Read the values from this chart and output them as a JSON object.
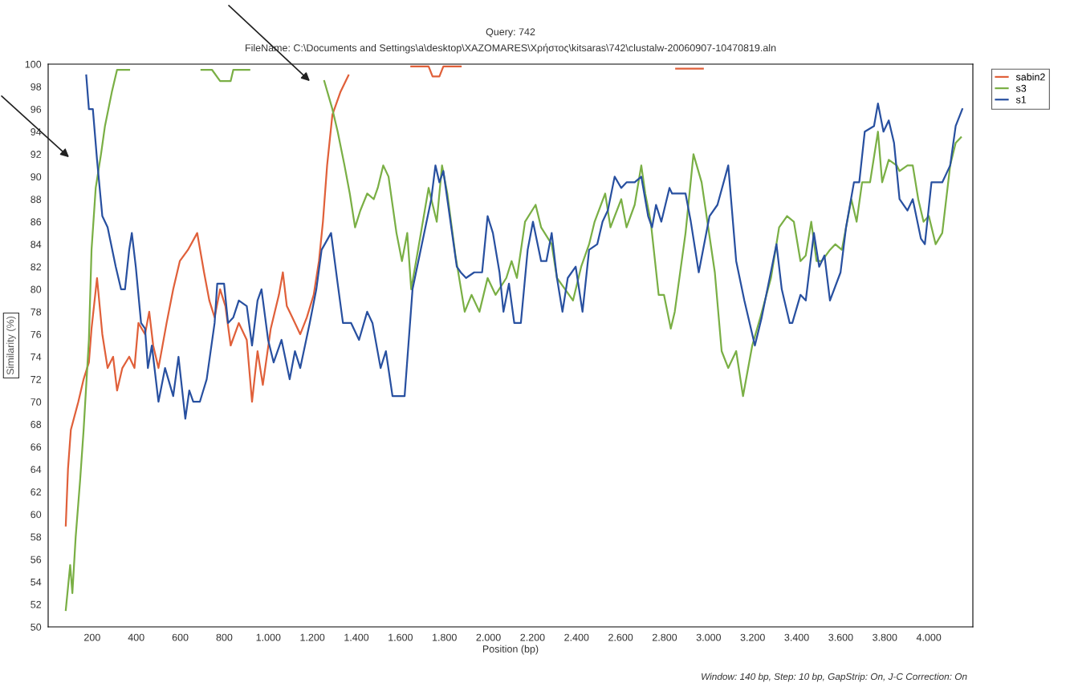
{
  "chart_data": {
    "type": "line",
    "title": "Query: 742",
    "subtitle": "FileName: C:\\Documents and Settings\\a\\desktop\\XAZOMARES\\Χρήστος\\kitsaras\\742\\clustalw-20060907-10470819.aln",
    "xlabel": "Position (bp)",
    "ylabel": "Similarity (%)",
    "annotations": [
      "Window: 140 bp, Step: 10 bp, GapStrip: On, J-C Correction: On"
    ],
    "xlim": [
      0,
      4200
    ],
    "ylim": [
      50,
      100
    ],
    "xticks": [
      200,
      400,
      600,
      800,
      {
        "value": 1000,
        "label": "1.000"
      },
      {
        "value": 1200,
        "label": "1.200"
      },
      {
        "value": 1400,
        "label": "1.400"
      },
      {
        "value": 1600,
        "label": "1.600"
      },
      {
        "value": 1800,
        "label": "1.800"
      },
      {
        "value": 2000,
        "label": "2.000"
      },
      {
        "value": 2200,
        "label": "2.200"
      },
      {
        "value": 2400,
        "label": "2.400"
      },
      {
        "value": 2600,
        "label": "2.600"
      },
      {
        "value": 2800,
        "label": "2.800"
      },
      {
        "value": 3000,
        "label": "3.000"
      },
      {
        "value": 3200,
        "label": "3.200"
      },
      {
        "value": 3400,
        "label": "3.400"
      },
      {
        "value": 3600,
        "label": "3.600"
      },
      {
        "value": 3800,
        "label": "3.800"
      },
      {
        "value": 4000,
        "label": "4.000"
      }
    ],
    "yticks": [
      50,
      52,
      54,
      56,
      58,
      60,
      62,
      64,
      66,
      68,
      70,
      72,
      74,
      76,
      78,
      80,
      82,
      84,
      86,
      88,
      90,
      92,
      94,
      96,
      98,
      100
    ],
    "grid": false,
    "legend": "top right",
    "marker": "none",
    "line_style": "solid",
    "series": [
      {
        "name": "sabin2",
        "color": "#e0603a",
        "x": [
          80,
          90,
          103,
          137,
          161,
          185,
          197,
          222,
          246,
          270,
          295,
          313,
          337,
          368,
          392,
          410,
          440,
          459,
          477,
          501,
          538,
          568,
          598,
          635,
          677,
          708,
          732,
          756,
          781,
          805,
          829,
          866,
          902,
          926,
          951,
          975,
          1011,
          1048,
          1066,
          1084,
          1109,
          1145,
          1175,
          1206,
          1230,
          1248,
          1267,
          1291,
          1327,
          1364,
          1500,
          1649,
          1728,
          1746,
          1777,
          1795,
          1874,
          2400,
          2852,
          2974
        ],
        "values": [
          59,
          64,
          67.5,
          70,
          72,
          73.5,
          76.5,
          81,
          76,
          73,
          74,
          71,
          73,
          74,
          73,
          77,
          76,
          78,
          75,
          73,
          77,
          80,
          82.5,
          83.5,
          85,
          81.5,
          79,
          77.5,
          80,
          78.5,
          75,
          77,
          75.5,
          70,
          74.5,
          71.5,
          76.5,
          79.5,
          81.5,
          78.5,
          77.5,
          76,
          77.5,
          79.5,
          82.5,
          86,
          91,
          95.5,
          97.5,
          99,
          null,
          99.8,
          99.8,
          98.9,
          98.9,
          99.8,
          99.8,
          null,
          99.6,
          99.6
        ]
      },
      {
        "name": "s3",
        "color": "#7aaf45",
        "x": [
          80,
          100,
          110,
          125,
          145,
          161,
          185,
          197,
          216,
          240,
          258,
          289,
          313,
          368,
          500,
          696,
          744,
          781,
          829,
          841,
          914,
          1100,
          1254,
          1291,
          1315,
          1346,
          1370,
          1394,
          1418,
          1449,
          1479,
          1497,
          1522,
          1546,
          1582,
          1607,
          1631,
          1649,
          1680,
          1728,
          1765,
          1789,
          1813,
          1850,
          1892,
          1923,
          1959,
          1996,
          2032,
          2081,
          2105,
          2129,
          2166,
          2214,
          2239,
          2287,
          2311,
          2348,
          2384,
          2421,
          2457,
          2482,
          2530,
          2554,
          2603,
          2627,
          2664,
          2694,
          2712,
          2737,
          2773,
          2797,
          2828,
          2846,
          2895,
          2931,
          2968,
          3028,
          3059,
          3089,
          3125,
          3156,
          3198,
          3235,
          3283,
          3320,
          3356,
          3387,
          3417,
          3441,
          3466,
          3490,
          3514,
          3551,
          3575,
          3605,
          3648,
          3672,
          3697,
          3733,
          3769,
          3788,
          3818,
          3854,
          3867,
          3903,
          3927,
          3952,
          3976,
          4000,
          4031,
          4061,
          4097,
          4122,
          4146
        ],
        "values": [
          51.5,
          55.5,
          53,
          58,
          63,
          67.5,
          75.5,
          83.5,
          89,
          92,
          94.5,
          97.5,
          99.5,
          99.5,
          null,
          99.5,
          99.5,
          98.5,
          98.5,
          99.5,
          99.5,
          null,
          98.5,
          96,
          94,
          91,
          88.5,
          85.5,
          87,
          88.5,
          88,
          89,
          91,
          90,
          85,
          82.5,
          85,
          80,
          83.5,
          89,
          86,
          91,
          88.5,
          83,
          78,
          79.5,
          78,
          81,
          79.5,
          81,
          82.5,
          81,
          86,
          87.5,
          85.5,
          84,
          81,
          80,
          79,
          82,
          84,
          86,
          88.5,
          85.5,
          88,
          85.5,
          87.5,
          91,
          88.5,
          86,
          79.5,
          79.5,
          76.5,
          78,
          85,
          92,
          89.5,
          81.5,
          74.5,
          73,
          74.5,
          70.5,
          75,
          77.5,
          81,
          85.5,
          86.5,
          86,
          82.5,
          83,
          86,
          82.5,
          82.5,
          83.5,
          84,
          83.5,
          88,
          86,
          89.5,
          89.5,
          94,
          89.5,
          91.5,
          91,
          90.5,
          91,
          91,
          88,
          86,
          86.5,
          84,
          85,
          91,
          93,
          93.5
        ]
      },
      {
        "name": "s1",
        "color": "#2850a0",
        "x": [
          173,
          185,
          203,
          222,
          246,
          270,
          307,
          331,
          349,
          368,
          380,
          398,
          422,
          440,
          453,
          471,
          501,
          531,
          568,
          592,
          623,
          641,
          659,
          689,
          720,
          756,
          768,
          799,
          817,
          841,
          866,
          902,
          926,
          951,
          969,
          999,
          1024,
          1060,
          1097,
          1121,
          1145,
          1188,
          1218,
          1242,
          1285,
          1315,
          1339,
          1376,
          1412,
          1449,
          1473,
          1510,
          1534,
          1564,
          1619,
          1655,
          1692,
          1740,
          1759,
          1777,
          1795,
          1813,
          1856,
          1874,
          1898,
          1935,
          1971,
          1996,
          2020,
          2050,
          2068,
          2093,
          2117,
          2147,
          2178,
          2202,
          2239,
          2263,
          2287,
          2311,
          2336,
          2360,
          2396,
          2427,
          2457,
          2494,
          2518,
          2542,
          2573,
          2603,
          2627,
          2664,
          2694,
          2725,
          2743,
          2761,
          2785,
          2822,
          2834,
          2895,
          2919,
          2955,
          3004,
          3040,
          3089,
          3125,
          3162,
          3210,
          3241,
          3308,
          3332,
          3368,
          3380,
          3417,
          3441,
          3478,
          3502,
          3526,
          3551,
          3599,
          3624,
          3660,
          3684,
          3709,
          3751,
          3769,
          3794,
          3818,
          3842,
          3867,
          3903,
          3927,
          3964,
          3982,
          4012,
          4061,
          4097,
          4122,
          4152
        ],
        "values": [
          99,
          96,
          96,
          91.5,
          86.5,
          85.5,
          82,
          80,
          80,
          83.5,
          85,
          82,
          77,
          76.5,
          73,
          75,
          70,
          73,
          70.5,
          74,
          68.5,
          71,
          70,
          70,
          72,
          77,
          80.5,
          80.5,
          77,
          77.5,
          79,
          78.5,
          75,
          79,
          80,
          75.5,
          73.5,
          75.5,
          72,
          74.5,
          73,
          77,
          80,
          83.5,
          85,
          80.5,
          77,
          77,
          75.5,
          78,
          77,
          73,
          74.5,
          70.5,
          70.5,
          80,
          83.5,
          88,
          91,
          89.5,
          90.5,
          88,
          82,
          81.5,
          81,
          81.5,
          81.5,
          86.5,
          85,
          81.5,
          78,
          80.5,
          77,
          77,
          83.5,
          86,
          82.5,
          82.5,
          85,
          81,
          78,
          81,
          82,
          78,
          83.5,
          84,
          86,
          87,
          90,
          89,
          89.5,
          89.5,
          90,
          86.5,
          85.5,
          87.5,
          86,
          89,
          88.5,
          88.5,
          86,
          81.5,
          86.5,
          87.5,
          91,
          82.5,
          79,
          75,
          77.5,
          84,
          80,
          77,
          77,
          79.5,
          79,
          85,
          82,
          83,
          79,
          81.5,
          85.5,
          89.5,
          89.5,
          94,
          94.5,
          96.5,
          94,
          95,
          93,
          88,
          87,
          88,
          84.5,
          84,
          89.5,
          89.5,
          91,
          94.5,
          96
        ]
      }
    ]
  }
}
